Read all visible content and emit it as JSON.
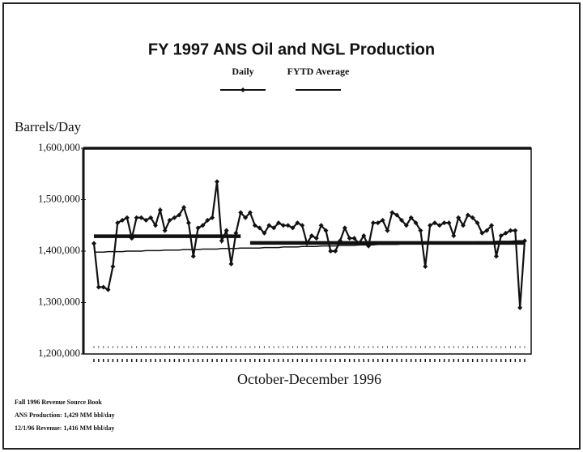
{
  "chart_data": {
    "type": "line",
    "title": "FY 1997 ANS Oil and NGL Production",
    "y_label": "Barrels/Day",
    "x_label": "October-December 1996",
    "ylim": [
      1200000,
      1600000
    ],
    "yticks": [
      {
        "value": 1200000,
        "label": "1,200,000"
      },
      {
        "value": 1300000,
        "label": "1,300,000"
      },
      {
        "value": 1400000,
        "label": "1,400,000"
      },
      {
        "value": 1500000,
        "label": "1,500,000"
      },
      {
        "value": 1600000,
        "label": "1,600,000"
      }
    ],
    "categories": [
      null,
      null,
      null,
      null,
      null,
      null,
      null,
      null,
      null,
      null,
      null,
      null,
      null,
      null,
      null,
      null,
      null,
      null,
      null,
      null,
      null,
      null,
      null,
      null,
      null,
      null,
      null,
      null,
      null,
      null,
      null,
      null,
      null,
      null,
      null,
      null,
      null,
      null,
      null,
      null,
      null,
      null,
      null,
      null,
      null,
      null,
      null,
      null,
      null,
      null,
      null,
      null,
      null,
      null,
      null,
      null,
      null,
      null,
      null,
      null,
      null,
      null,
      null,
      null,
      null,
      null,
      null,
      null,
      null,
      null,
      null,
      null,
      null,
      null,
      null,
      null,
      null,
      null,
      null,
      null,
      null,
      null,
      null,
      null,
      null,
      null,
      null,
      null,
      null,
      null,
      null,
      null
    ],
    "series": [
      {
        "name": "Daily",
        "color": "#111111",
        "marker": "diamond",
        "values": [
          1415000,
          1330000,
          1330000,
          1325000,
          1370000,
          1455000,
          1460000,
          1465000,
          1425000,
          1465000,
          1465000,
          1460000,
          1465000,
          1450000,
          1480000,
          1440000,
          1460000,
          1465000,
          1470000,
          1485000,
          1455000,
          1390000,
          1445000,
          1450000,
          1460000,
          1465000,
          1535000,
          1420000,
          1440000,
          1375000,
          1435000,
          1475000,
          1465000,
          1475000,
          1450000,
          1445000,
          1435000,
          1450000,
          1445000,
          1455000,
          1450000,
          1450000,
          1445000,
          1455000,
          1450000,
          1415000,
          1430000,
          1425000,
          1450000,
          1440000,
          1400000,
          1400000,
          1420000,
          1445000,
          1425000,
          1425000,
          1415000,
          1430000,
          1410000,
          1455000,
          1455000,
          1460000,
          1440000,
          1475000,
          1470000,
          1460000,
          1450000,
          1465000,
          1455000,
          1440000,
          1370000,
          1450000,
          1455000,
          1450000,
          1455000,
          1455000,
          1430000,
          1465000,
          1450000,
          1470000,
          1465000,
          1455000,
          1435000,
          1440000,
          1450000,
          1390000,
          1430000,
          1435000,
          1440000,
          1440000,
          1290000,
          1420000
        ]
      },
      {
        "name": "FYTD Average",
        "color": "#111111",
        "values": [
          1398000,
          1398000,
          1398000,
          1399000,
          1399000,
          1399000,
          1399000,
          1400000,
          1400000,
          1400000,
          1400000,
          1401000,
          1401000,
          1401000,
          1401000,
          1402000,
          1402000,
          1402000,
          1402000,
          1403000,
          1403000,
          1403000,
          1403000,
          1404000,
          1404000,
          1404000,
          1404000,
          1405000,
          1405000,
          1405000,
          1405000,
          1406000,
          1406000,
          1406000,
          1406000,
          1406000,
          1407000,
          1407000,
          1407000,
          1407000,
          1408000,
          1408000,
          1408000,
          1408000,
          1409000,
          1409000,
          1409000,
          1409000,
          1410000,
          1410000,
          1410000,
          1410000,
          1411000,
          1411000,
          1411000,
          1411000,
          1412000,
          1412000,
          1412000,
          1412000,
          1413000,
          1413000,
          1413000,
          1413000,
          1413000,
          1414000,
          1414000,
          1414000,
          1414000,
          1415000,
          1415000,
          1415000,
          1415000,
          1416000,
          1416000,
          1416000,
          1416000,
          1417000,
          1417000,
          1417000,
          1417000,
          1418000,
          1418000,
          1418000,
          1418000,
          1419000,
          1419000,
          1419000,
          1419000,
          1420000,
          1420000,
          1420000
        ]
      }
    ],
    "reference_lines": [
      {
        "value": 1429000,
        "from": 0,
        "to": 31
      },
      {
        "value": 1416000,
        "from": 33,
        "to": 91
      }
    ],
    "notes": [
      "Fall 1996 Revenue Source Book",
      "ANS Production: 1,429 MM bbl/day",
      "12/1/96 Revenue: 1,416 MM bbl/day"
    ]
  }
}
